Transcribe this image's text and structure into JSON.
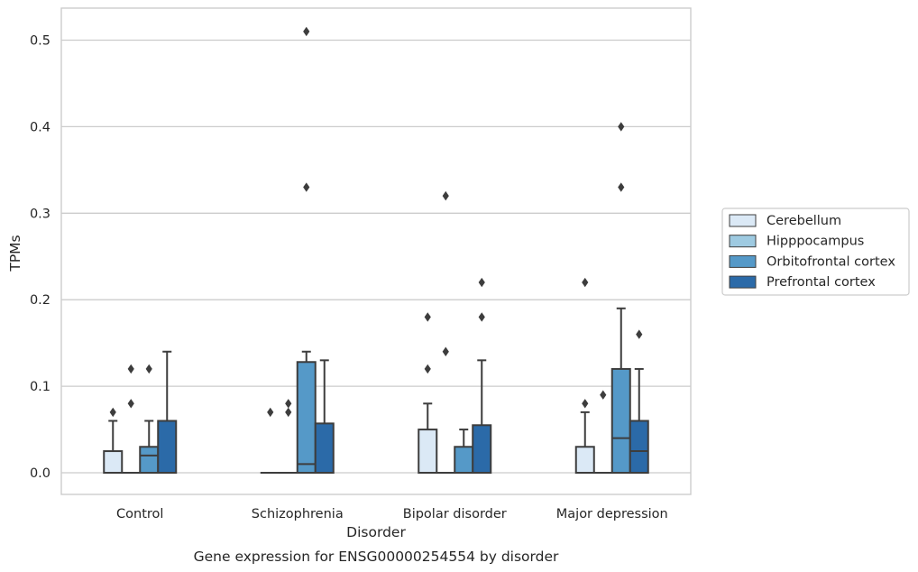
{
  "chart_data": {
    "type": "box",
    "title": "",
    "caption": "Gene expression for ENSG00000254554 by disorder",
    "xlabel": "Disorder",
    "ylabel": "TPMs",
    "ylim": [
      -0.025,
      0.537
    ],
    "yticks": [
      "0.0",
      "0.1",
      "0.2",
      "0.3",
      "0.4",
      "0.5"
    ],
    "ytick_values": [
      0,
      0.1,
      0.2,
      0.3,
      0.4,
      0.5
    ],
    "grid": true,
    "legend_position": "right",
    "categories": [
      "Control",
      "Schizophrenia",
      "Bipolar disorder",
      "Major depression"
    ],
    "series": [
      {
        "name": "Cerebellum",
        "color": "#dbe9f6",
        "boxes": [
          {
            "q1": 0,
            "median": 0,
            "q3": 0.025,
            "whisker_low": 0,
            "whisker_high": 0.06,
            "outliers": [
              0.07
            ]
          },
          {
            "q1": 0,
            "median": 0,
            "q3": 0,
            "whisker_low": 0,
            "whisker_high": 0,
            "outliers": [
              0.07
            ]
          },
          {
            "q1": 0,
            "median": 0,
            "q3": 0.05,
            "whisker_low": 0,
            "whisker_high": 0.08,
            "outliers": [
              0.12,
              0.18
            ]
          },
          {
            "q1": 0,
            "median": 0,
            "q3": 0.03,
            "whisker_low": 0,
            "whisker_high": 0.07,
            "outliers": [
              0.08,
              0.22
            ]
          }
        ]
      },
      {
        "name": "Hipppocampus",
        "color": "#9ecae1",
        "boxes": [
          {
            "q1": 0,
            "median": 0,
            "q3": 0,
            "whisker_low": 0,
            "whisker_high": 0,
            "outliers": [
              0.08,
              0.12
            ]
          },
          {
            "q1": 0,
            "median": 0,
            "q3": 0,
            "whisker_low": 0,
            "whisker_high": 0,
            "outliers": [
              0.07,
              0.08
            ]
          },
          {
            "q1": 0,
            "median": 0,
            "q3": 0,
            "whisker_low": 0,
            "whisker_high": 0,
            "outliers": [
              0.14,
              0.32
            ]
          },
          {
            "q1": 0,
            "median": 0,
            "q3": 0,
            "whisker_low": 0,
            "whisker_high": 0,
            "outliers": [
              0.09
            ]
          }
        ]
      },
      {
        "name": "Orbitofrontal cortex",
        "color": "#5599c8",
        "boxes": [
          {
            "q1": 0,
            "median": 0.02,
            "q3": 0.03,
            "whisker_low": 0,
            "whisker_high": 0.06,
            "outliers": [
              0.12
            ]
          },
          {
            "q1": 0,
            "median": 0.01,
            "q3": 0.128,
            "whisker_low": 0,
            "whisker_high": 0.14,
            "outliers": [
              0.33,
              0.51
            ]
          },
          {
            "q1": 0,
            "median": 0,
            "q3": 0.03,
            "whisker_low": 0,
            "whisker_high": 0.05,
            "outliers": []
          },
          {
            "q1": 0,
            "median": 0.04,
            "q3": 0.12,
            "whisker_low": 0,
            "whisker_high": 0.19,
            "outliers": [
              0.33,
              0.4
            ]
          }
        ]
      },
      {
        "name": "Prefrontal cortex",
        "color": "#2b6aa8",
        "boxes": [
          {
            "q1": 0,
            "median": 0,
            "q3": 0.06,
            "whisker_low": 0,
            "whisker_high": 0.14,
            "outliers": []
          },
          {
            "q1": 0,
            "median": 0,
            "q3": 0.057,
            "whisker_low": 0,
            "whisker_high": 0.13,
            "outliers": []
          },
          {
            "q1": 0,
            "median": 0,
            "q3": 0.055,
            "whisker_low": 0,
            "whisker_high": 0.13,
            "outliers": [
              0.18,
              0.22
            ]
          },
          {
            "q1": 0,
            "median": 0.025,
            "q3": 0.06,
            "whisker_low": 0,
            "whisker_high": 0.12,
            "outliers": [
              0.16
            ]
          }
        ]
      }
    ]
  }
}
